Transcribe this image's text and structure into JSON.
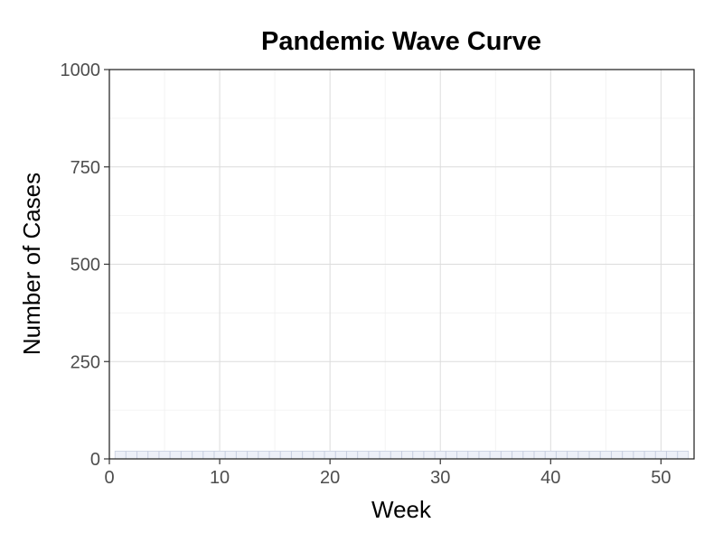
{
  "chart_data": {
    "type": "bar",
    "title": "Pandemic Wave Curve",
    "xlabel": "Week",
    "ylabel": "Number of Cases",
    "xlim": [
      0,
      53
    ],
    "ylim": [
      0,
      1000
    ],
    "x_ticks": [
      0,
      10,
      20,
      30,
      40,
      50
    ],
    "y_ticks": [
      0,
      250,
      500,
      750,
      1000
    ],
    "grid": true,
    "legend": "none",
    "bar_fill": "#edf0f8",
    "bar_stroke": "#c8cfe0",
    "x": [
      1,
      2,
      3,
      4,
      5,
      6,
      7,
      8,
      9,
      10,
      11,
      12,
      13,
      14,
      15,
      16,
      17,
      18,
      19,
      20,
      21,
      22,
      23,
      24,
      25,
      26,
      27,
      28,
      29,
      30,
      31,
      32,
      33,
      34,
      35,
      36,
      37,
      38,
      39,
      40,
      41,
      42,
      43,
      44,
      45,
      46,
      47,
      48,
      49,
      50,
      51,
      52
    ],
    "values": [
      20,
      20,
      20,
      20,
      20,
      20,
      20,
      20,
      20,
      20,
      20,
      20,
      20,
      20,
      20,
      20,
      20,
      20,
      20,
      20,
      20,
      20,
      20,
      20,
      20,
      20,
      20,
      20,
      20,
      20,
      20,
      20,
      20,
      20,
      20,
      20,
      20,
      20,
      20,
      20,
      20,
      20,
      20,
      20,
      20,
      20,
      20,
      20,
      20,
      20,
      20,
      20
    ]
  }
}
